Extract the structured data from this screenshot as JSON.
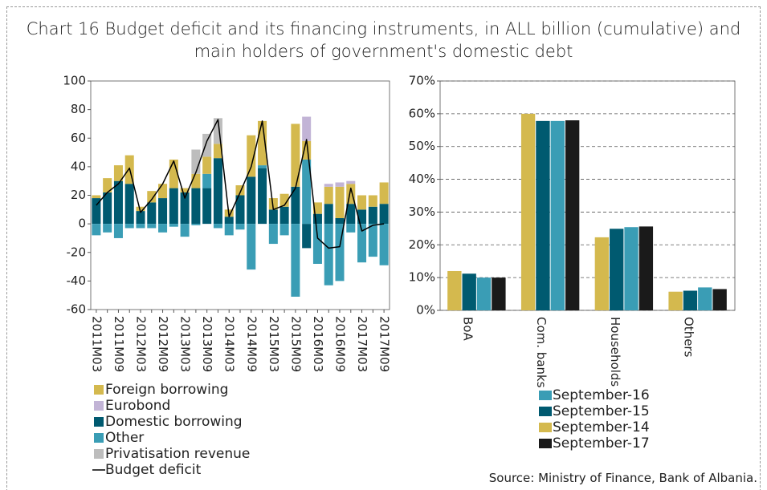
{
  "title": "Chart 16 Budget deficit and its financing instruments, in ALL billion (cumulative) and main holders of government's domestic debt",
  "source": "Source: Ministry of Finance, Bank of Albania.",
  "chart_data": [
    {
      "type": "bar",
      "stacked": true,
      "grid": false,
      "legend": "bottom-left",
      "categories": [
        "2011M03",
        null,
        "2011M09",
        null,
        "2012M03",
        null,
        "2012M09",
        null,
        "2013M03",
        null,
        "2013M09",
        null,
        "2014M03",
        null,
        "2014M09",
        null,
        "2015M03",
        null,
        "2015M09",
        null,
        "2016M03",
        null,
        "2016M09",
        null,
        "2017M03",
        null,
        "2017M09"
      ],
      "ylim": [
        -60,
        100
      ],
      "yticks": [
        -60,
        -40,
        -20,
        0,
        20,
        40,
        60,
        80,
        100
      ],
      "series": [
        {
          "name": "Foreign borrowing",
          "color": "#d4b94e",
          "values": [
            2,
            10,
            11,
            20,
            3,
            8,
            10,
            20,
            3,
            10,
            12,
            10,
            5,
            7,
            29,
            31,
            8,
            9,
            44,
            13,
            8,
            12,
            22,
            14,
            10,
            8,
            15
          ]
        },
        {
          "name": "Eurobond",
          "color": "#c2b4d6",
          "values": [
            0,
            0,
            0,
            0,
            0,
            0,
            0,
            0,
            0,
            0,
            0,
            0,
            0,
            0,
            0,
            0,
            0,
            0,
            0,
            17,
            0,
            2,
            3,
            2,
            0,
            0,
            0
          ]
        },
        {
          "name": "Domestic borrowing",
          "color": "#005a70",
          "values": [
            18,
            22,
            30,
            28,
            9,
            15,
            18,
            25,
            22,
            25,
            25,
            46,
            5,
            20,
            33,
            39,
            10,
            12,
            26,
            -17,
            7,
            14,
            4,
            14,
            10,
            12,
            14
          ]
        },
        {
          "name": "Other",
          "color": "#3a9db5",
          "values": [
            -8,
            -6,
            -10,
            -3,
            -3,
            -3,
            -6,
            -2,
            -9,
            -1,
            10,
            -3,
            -8,
            -4,
            -32,
            2,
            -14,
            -8,
            -51,
            45,
            -28,
            -43,
            -40,
            -6,
            -27,
            -23,
            -29
          ]
        },
        {
          "name": "Privatisation revenue",
          "color": "#bdbdbd",
          "values": [
            0,
            0,
            0,
            0,
            0,
            0,
            0,
            0,
            0,
            17,
            16,
            18,
            0,
            0,
            0,
            0,
            0,
            0,
            0,
            0,
            0,
            0,
            0,
            0,
            0,
            0,
            0
          ]
        },
        {
          "name": "Budget deficit",
          "color": "#000000",
          "type": "line",
          "values": [
            13,
            22,
            28,
            39,
            8,
            17,
            28,
            44,
            18,
            36,
            58,
            73,
            5,
            22,
            40,
            72,
            10,
            13,
            25,
            59,
            -10,
            -17,
            -16,
            25,
            -5,
            -1,
            0
          ]
        }
      ]
    },
    {
      "type": "bar",
      "grid": true,
      "legend": "bottom-center",
      "categories": [
        "BoA",
        "Com. banks",
        "Households",
        "Others"
      ],
      "ylim": [
        0,
        70
      ],
      "yticks": [
        {
          "value": 0,
          "label": "0%"
        },
        {
          "value": 10,
          "label": "10%"
        },
        {
          "value": 20,
          "label": "20%"
        },
        {
          "value": 30,
          "label": "30%"
        },
        {
          "value": 40,
          "label": "40%"
        },
        {
          "value": 50,
          "label": "50%"
        },
        {
          "value": 60,
          "label": "60%"
        },
        {
          "value": 70,
          "label": "70%"
        }
      ],
      "series": [
        {
          "name": "September-16",
          "color": "#3a9db5",
          "values": [
            10,
            57.8,
            25.4,
            7
          ]
        },
        {
          "name": "September-15",
          "color": "#005a70",
          "values": [
            11.2,
            57.8,
            24.9,
            6
          ]
        },
        {
          "name": "September-14",
          "color": "#d4b94e",
          "values": [
            12,
            60,
            22.3,
            5.7
          ]
        },
        {
          "name": "September-17",
          "color": "#1a1a1a",
          "values": [
            10,
            58,
            25.6,
            6.5
          ]
        }
      ]
    }
  ]
}
